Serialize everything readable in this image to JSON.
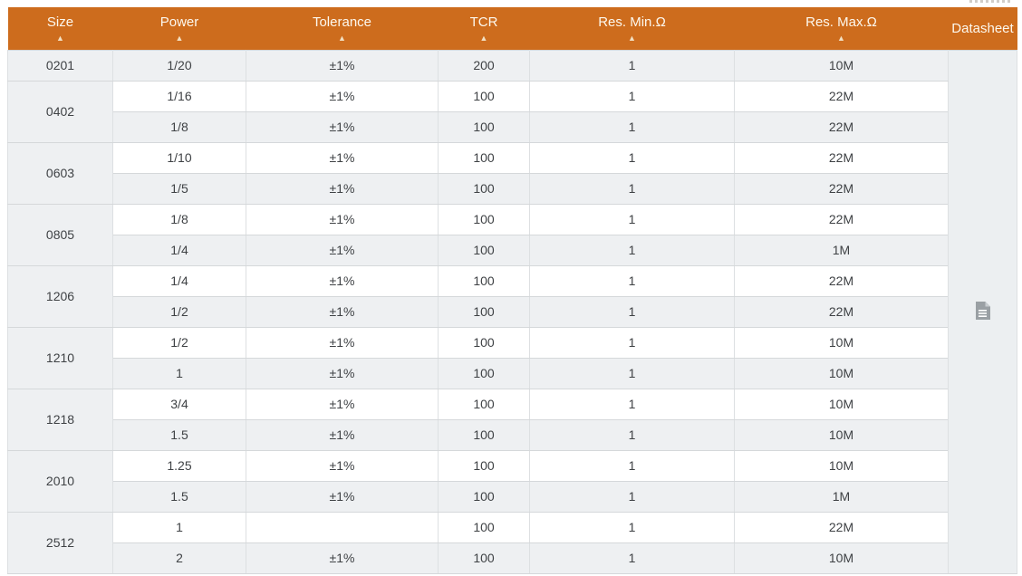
{
  "colors": {
    "accent": "#cd6c1d",
    "header_text": "#fdf8ee",
    "sort_icon_color": "#f2e0c2",
    "row_alt": "#eef0f2",
    "row_white": "#ffffff",
    "datasheet_bg": "#eceff1",
    "icon_gray": "#9aa0a4",
    "text": "#3f4245"
  },
  "table": {
    "sort_indicator": "▲",
    "columns": [
      {
        "id": "size",
        "label": "Size",
        "sortable": true
      },
      {
        "id": "power",
        "label": "Power",
        "sortable": true
      },
      {
        "id": "tolerance",
        "label": "Tolerance",
        "sortable": true
      },
      {
        "id": "tcr",
        "label": "TCR",
        "sortable": true
      },
      {
        "id": "res_min",
        "label": "Res. Min.Ω",
        "sortable": true
      },
      {
        "id": "res_max",
        "label": "Res. Max.Ω",
        "sortable": true
      },
      {
        "id": "datasheet",
        "label": "Datasheet",
        "sortable": false
      }
    ],
    "groups": [
      {
        "size": "0201",
        "rows": [
          {
            "power": "1/20",
            "tolerance": "±1%",
            "tcr": "200",
            "res_min": "1",
            "res_max": "10M"
          }
        ]
      },
      {
        "size": "0402",
        "rows": [
          {
            "power": "1/16",
            "tolerance": "±1%",
            "tcr": "100",
            "res_min": "1",
            "res_max": "22M"
          },
          {
            "power": "1/8",
            "tolerance": "±1%",
            "tcr": "100",
            "res_min": "1",
            "res_max": "22M"
          }
        ]
      },
      {
        "size": "0603",
        "rows": [
          {
            "power": "1/10",
            "tolerance": "±1%",
            "tcr": "100",
            "res_min": "1",
            "res_max": "22M"
          },
          {
            "power": "1/5",
            "tolerance": "±1%",
            "tcr": "100",
            "res_min": "1",
            "res_max": "22M"
          }
        ]
      },
      {
        "size": "0805",
        "rows": [
          {
            "power": "1/8",
            "tolerance": "±1%",
            "tcr": "100",
            "res_min": "1",
            "res_max": "22M"
          },
          {
            "power": "1/4",
            "tolerance": "±1%",
            "tcr": "100",
            "res_min": "1",
            "res_max": "1M"
          }
        ]
      },
      {
        "size": "1206",
        "rows": [
          {
            "power": "1/4",
            "tolerance": "±1%",
            "tcr": "100",
            "res_min": "1",
            "res_max": "22M"
          },
          {
            "power": "1/2",
            "tolerance": "±1%",
            "tcr": "100",
            "res_min": "1",
            "res_max": "22M"
          }
        ]
      },
      {
        "size": "1210",
        "rows": [
          {
            "power": "1/2",
            "tolerance": "±1%",
            "tcr": "100",
            "res_min": "1",
            "res_max": "10M"
          },
          {
            "power": "1",
            "tolerance": "±1%",
            "tcr": "100",
            "res_min": "1",
            "res_max": "10M"
          }
        ]
      },
      {
        "size": "1218",
        "rows": [
          {
            "power": "3/4",
            "tolerance": "±1%",
            "tcr": "100",
            "res_min": "1",
            "res_max": "10M"
          },
          {
            "power": "1.5",
            "tolerance": "±1%",
            "tcr": "100",
            "res_min": "1",
            "res_max": "10M"
          }
        ]
      },
      {
        "size": "2010",
        "rows": [
          {
            "power": "1.25",
            "tolerance": "±1%",
            "tcr": "100",
            "res_min": "1",
            "res_max": "10M"
          },
          {
            "power": "1.5",
            "tolerance": "±1%",
            "tcr": "100",
            "res_min": "1",
            "res_max": "1M"
          }
        ]
      },
      {
        "size": "2512",
        "rows": [
          {
            "power": "1",
            "tolerance": "",
            "tcr": "100",
            "res_min": "1",
            "res_max": "22M"
          },
          {
            "power": "2",
            "tolerance": "±1%",
            "tcr": "100",
            "res_min": "1",
            "res_max": "10M"
          }
        ]
      }
    ]
  }
}
